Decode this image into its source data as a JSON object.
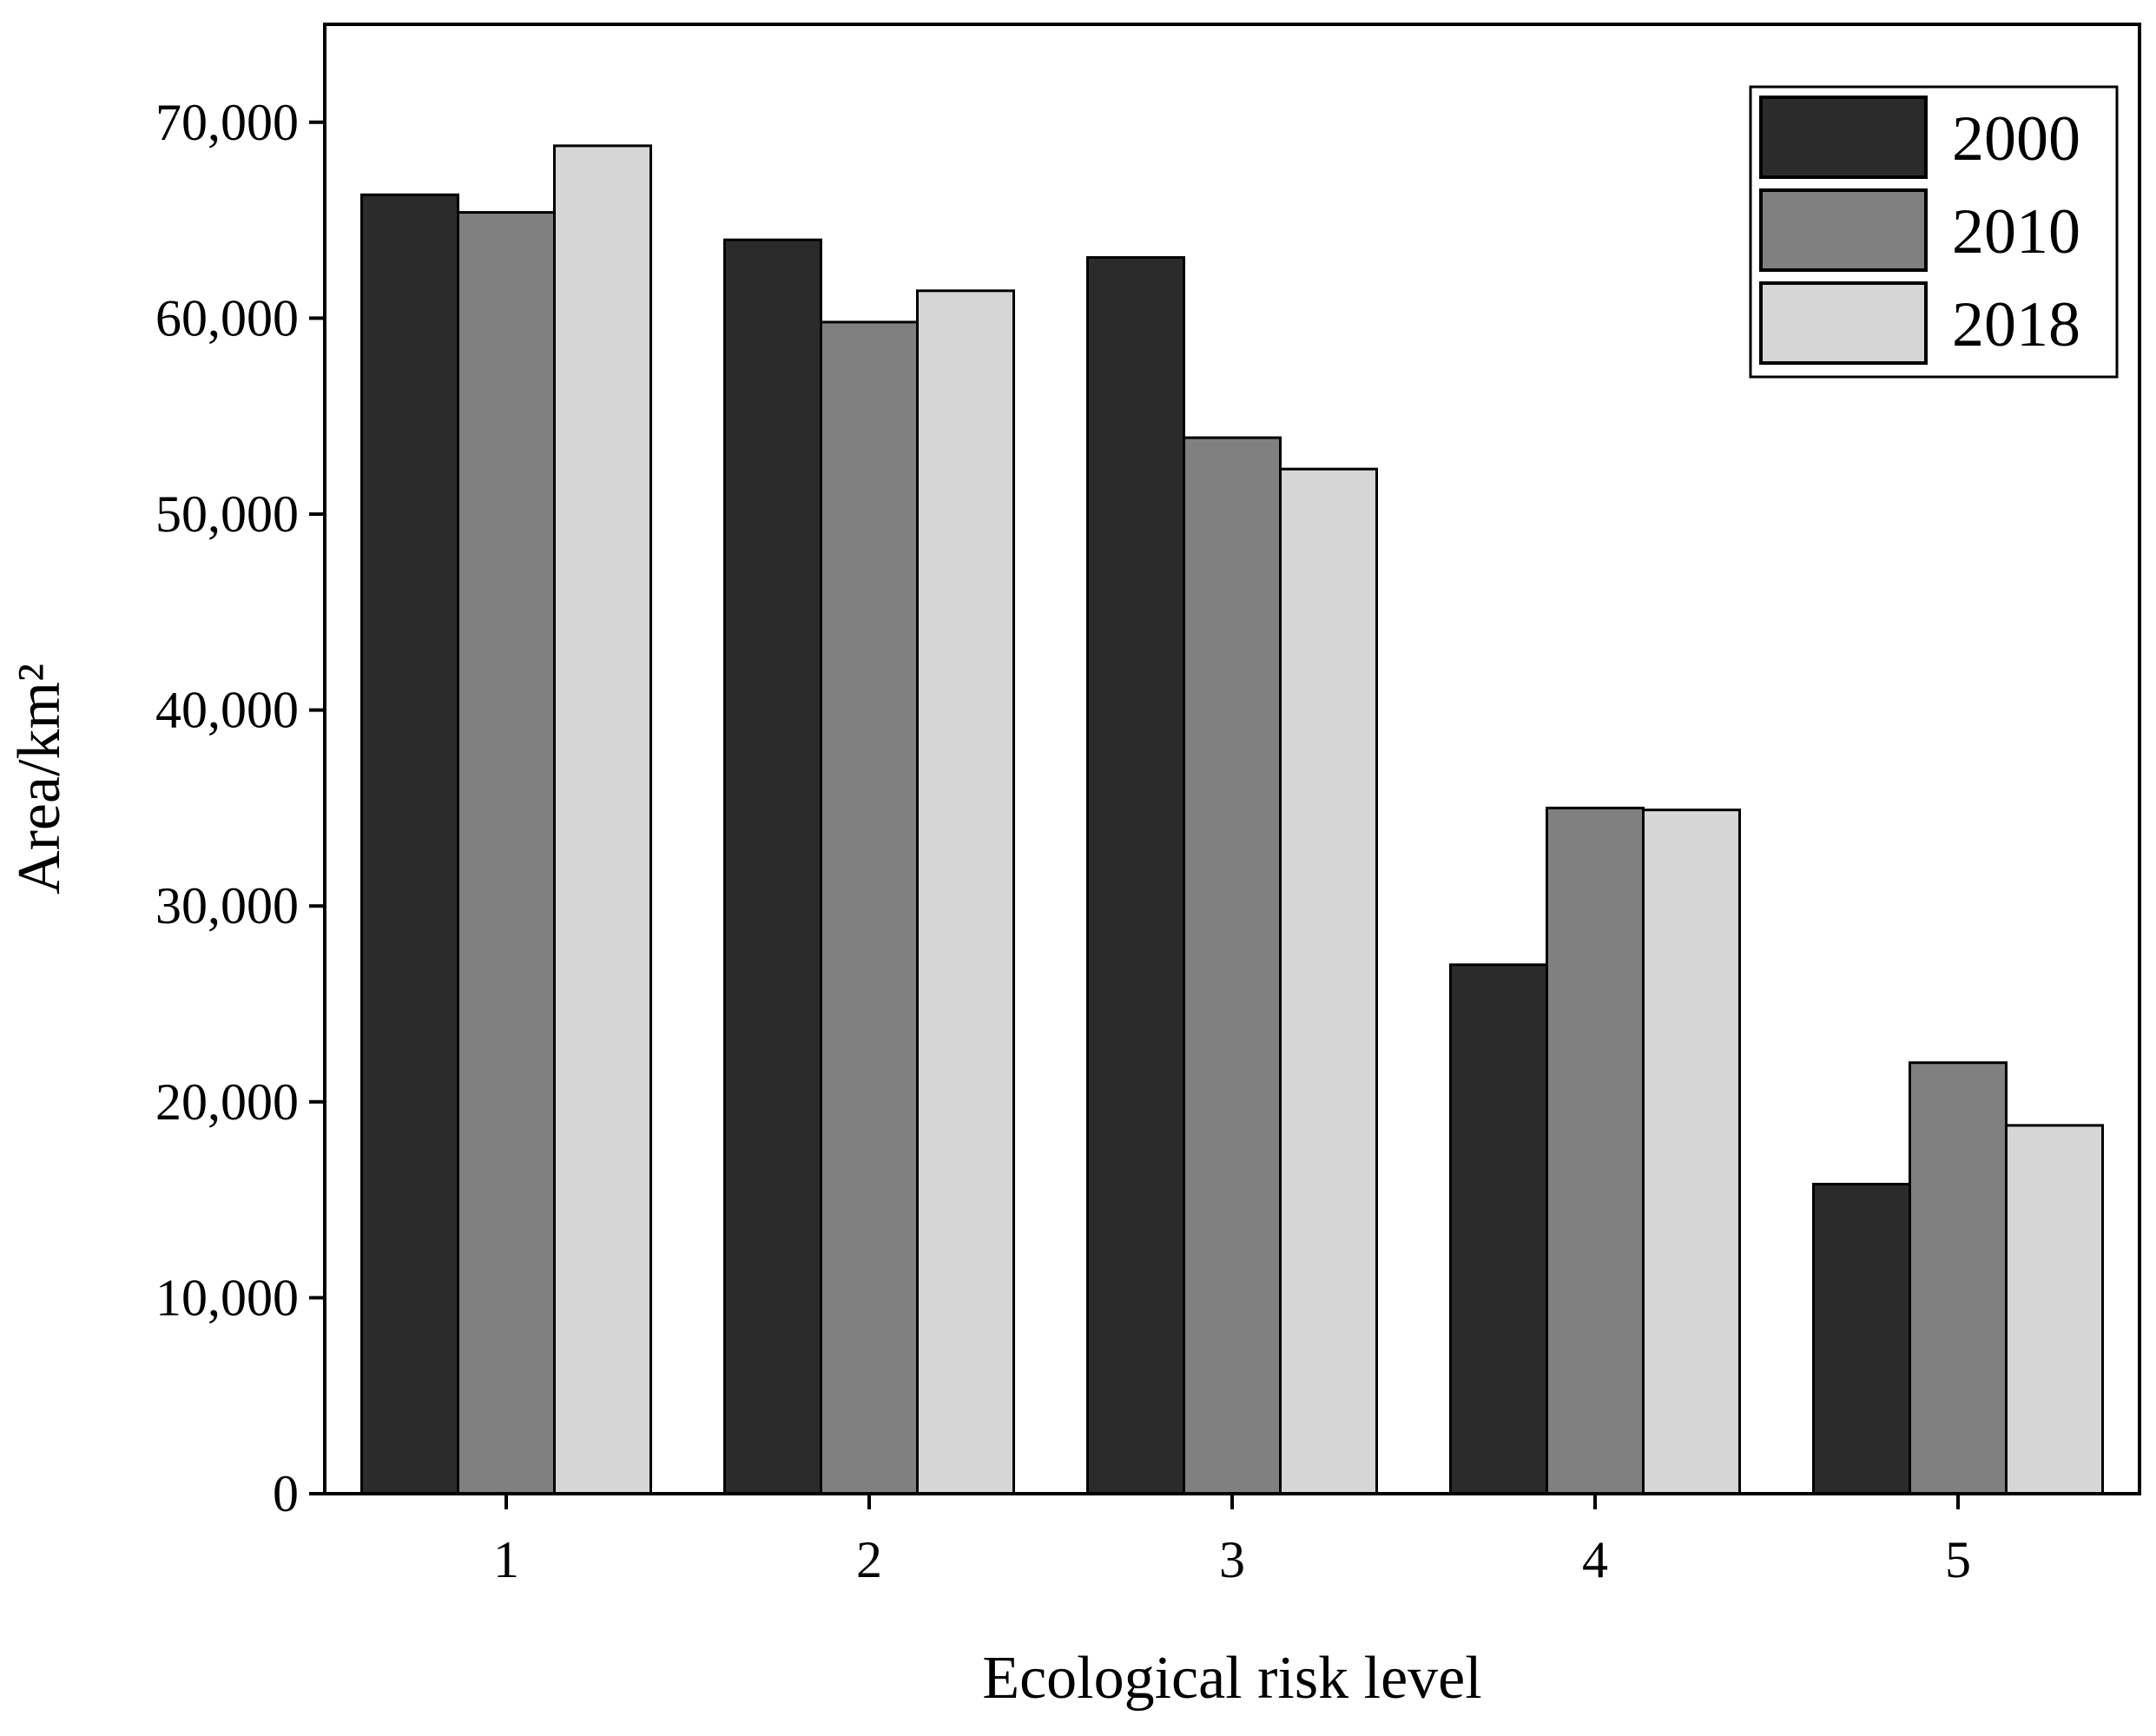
{
  "chart_data": {
    "type": "bar",
    "title": "",
    "xlabel": "Ecological risk level",
    "ylabel": "Area/km²",
    "categories": [
      "1",
      "2",
      "3",
      "4",
      "5"
    ],
    "series": [
      {
        "name": "2000",
        "color": "#2b2b2b",
        "values": [
          66300,
          64000,
          63100,
          27000,
          15800
        ]
      },
      {
        "name": "2010",
        "color": "#808080",
        "values": [
          65400,
          59800,
          53900,
          35000,
          22000
        ]
      },
      {
        "name": "2018",
        "color": "#d6d6d6",
        "values": [
          68800,
          61400,
          52300,
          34900,
          18800
        ]
      }
    ],
    "ylim": [
      0,
      75000
    ],
    "yticks": [
      0,
      10000,
      20000,
      30000,
      40000,
      50000,
      60000,
      70000
    ],
    "ytick_labels": [
      "0",
      "10,000",
      "20,000",
      "30,000",
      "40,000",
      "50,000",
      "60,000",
      "70,000"
    ],
    "legend_position": "top-right",
    "grid": false
  }
}
